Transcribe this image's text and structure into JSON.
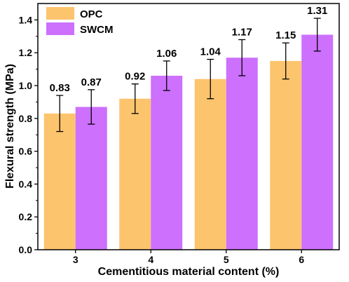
{
  "chart_data": {
    "type": "bar",
    "title": "",
    "xlabel": "Cementitious material content (%)",
    "ylabel": "Flexural strength (MPa)",
    "categories": [
      "3",
      "4",
      "5",
      "6"
    ],
    "ylim": [
      0.0,
      1.5
    ],
    "yticks": [
      "0.0",
      "0.2",
      "0.4",
      "0.6",
      "0.8",
      "1.0",
      "1.2",
      "1.4"
    ],
    "grid": false,
    "legend_position": "top-left",
    "series": [
      {
        "name": "OPC",
        "color": "#fdc46e",
        "values": [
          0.83,
          0.92,
          1.04,
          1.15
        ],
        "labels": [
          "0.83",
          "0.92",
          "1.04",
          "1.15"
        ],
        "error": [
          0.11,
          0.09,
          0.12,
          0.11
        ]
      },
      {
        "name": "SWCM",
        "color": "#cc70fd",
        "values": [
          0.87,
          1.06,
          1.17,
          1.31
        ],
        "labels": [
          "0.87",
          "1.06",
          "1.17",
          "1.31"
        ],
        "error": [
          0.105,
          0.09,
          0.11,
          0.1
        ]
      }
    ]
  }
}
